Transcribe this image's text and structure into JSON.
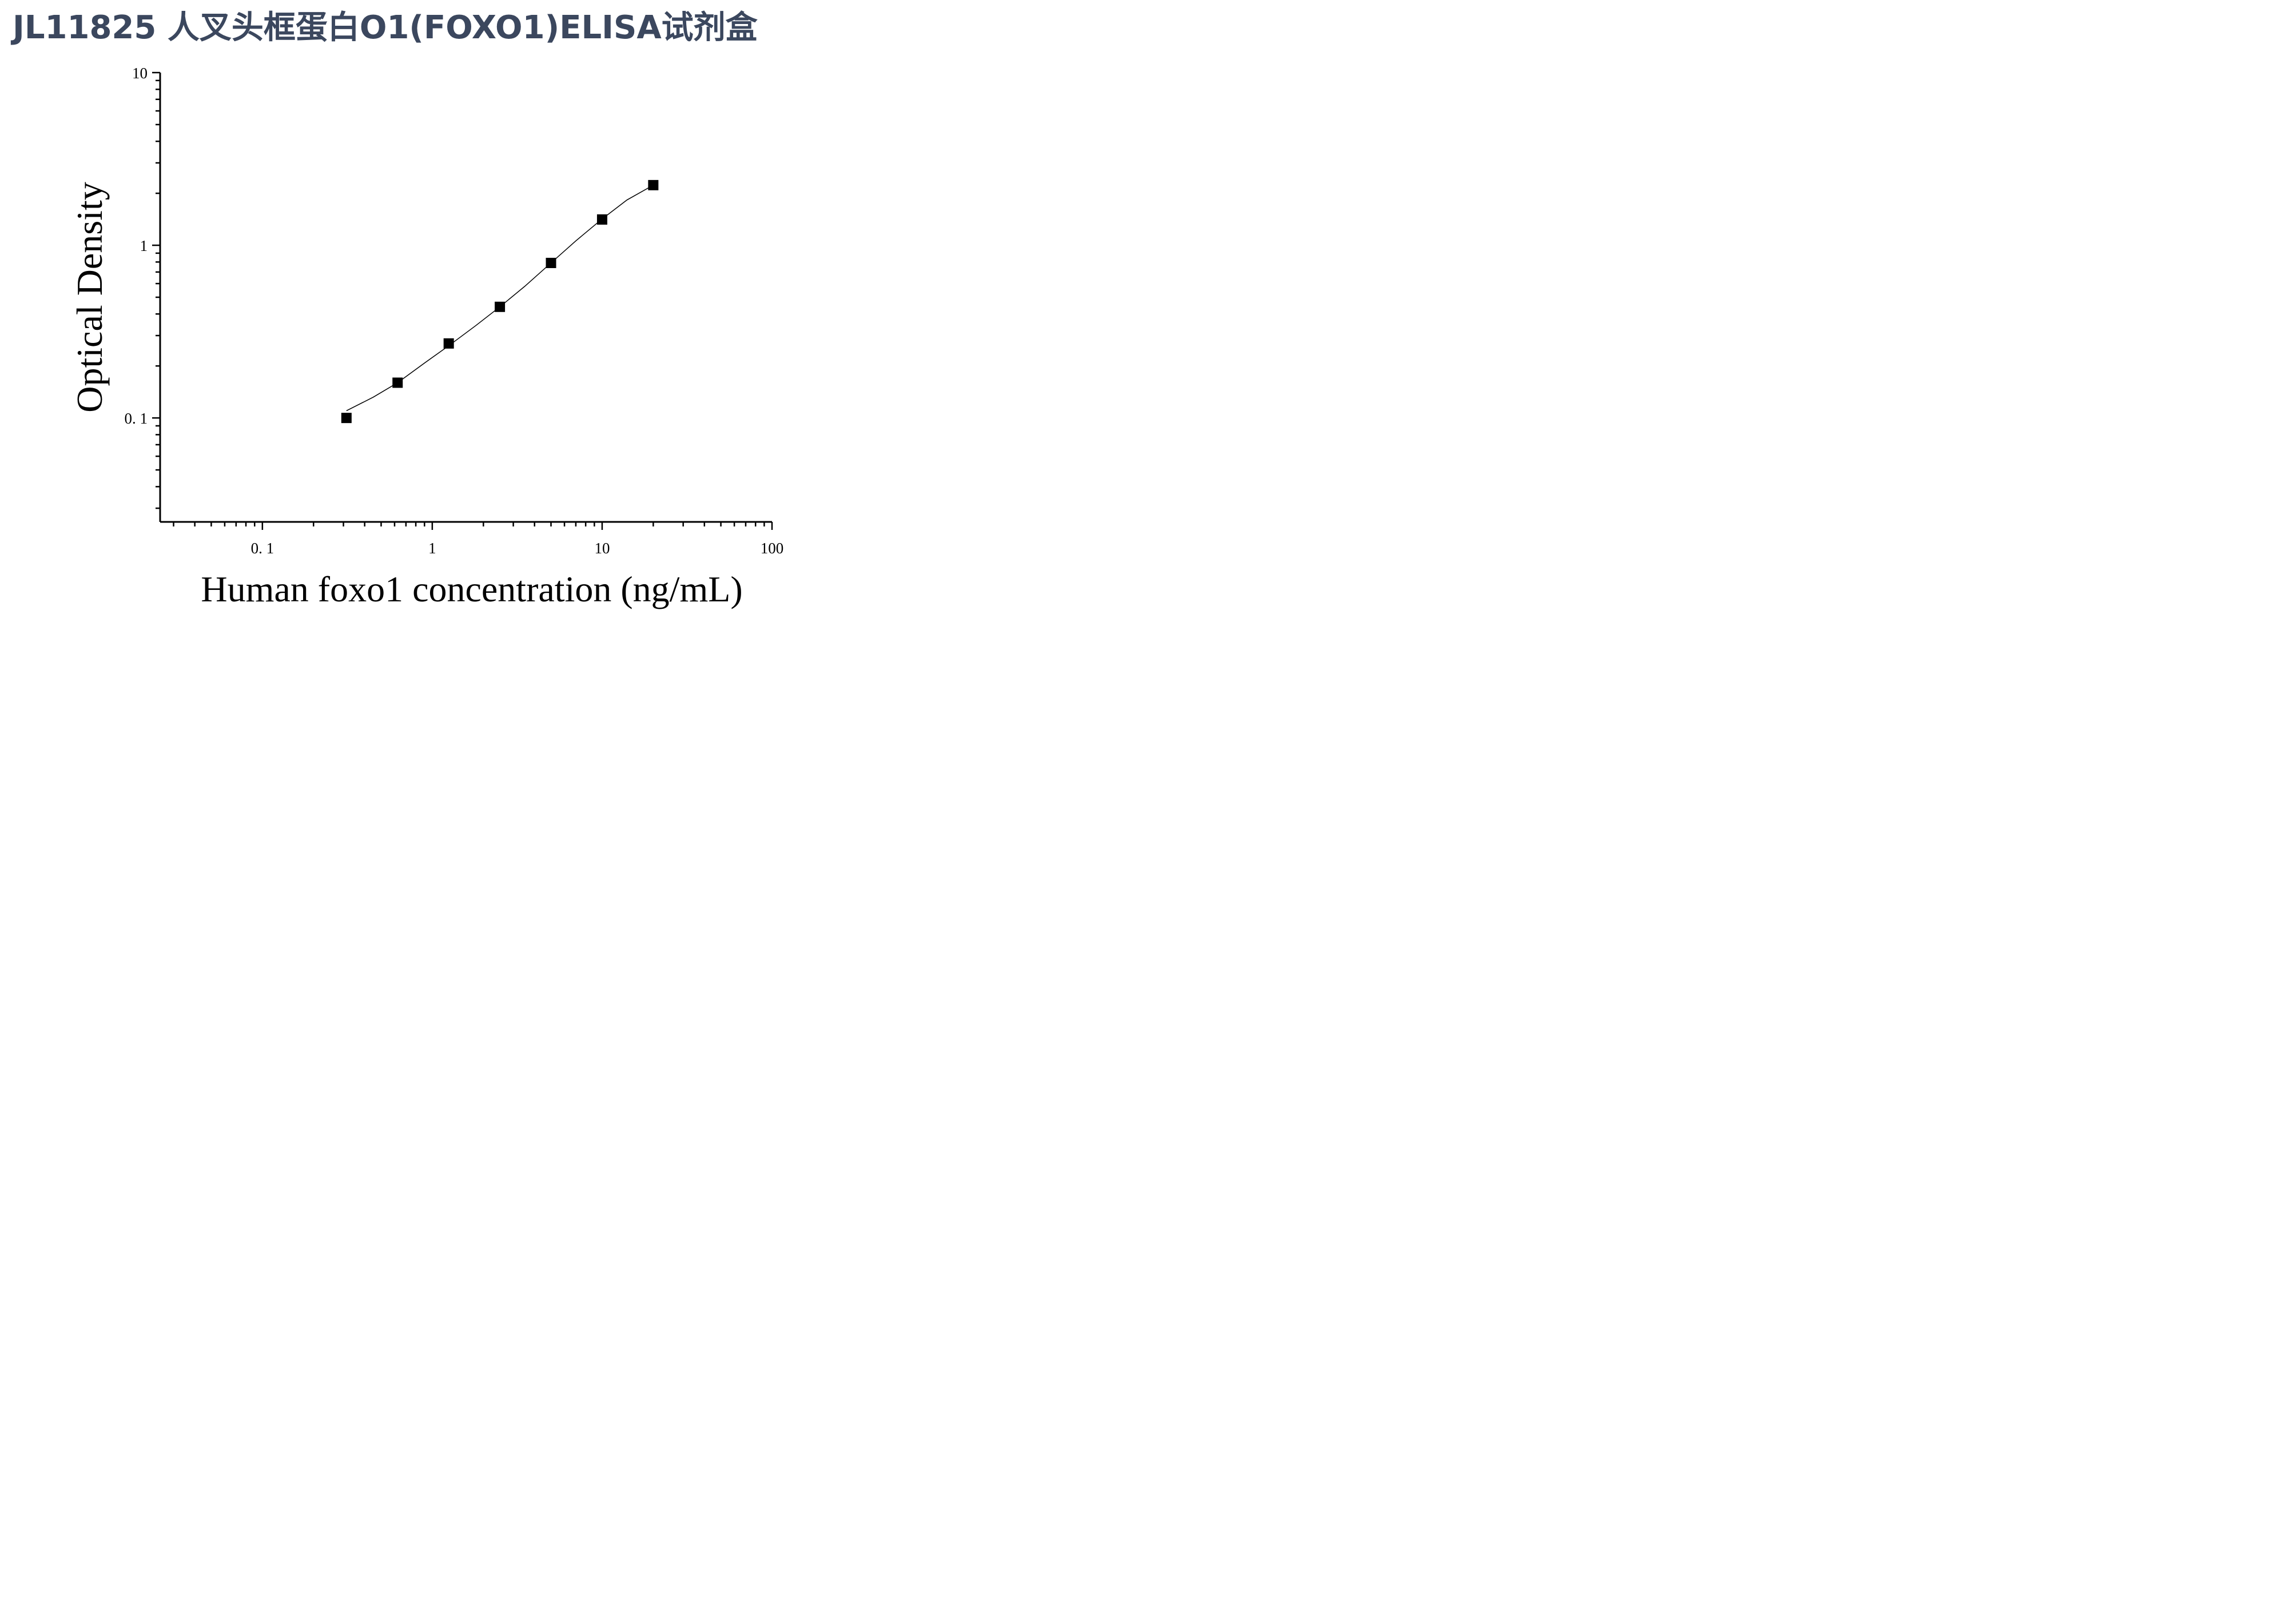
{
  "title": "JL11825 人叉头框蛋白O1(FOXO1)ELISA试剂盒",
  "chart_data": {
    "type": "scatter",
    "title": "JL11825 人叉头框蛋白O1(FOXO1)ELISA试剂盒",
    "xlabel": "Human foxo1 concentration (ng/mL)",
    "ylabel": "Optical Density",
    "x_scale": "log",
    "y_scale": "log",
    "xlim": [
      0.025,
      100
    ],
    "ylim": [
      0.025,
      10
    ],
    "x_tick_labels": [
      "0. 1",
      "1",
      "10",
      "100"
    ],
    "y_tick_labels": [
      "0. 1",
      "1",
      "10"
    ],
    "grid": false,
    "legend": "none",
    "marker_color": "#000000",
    "series": [
      {
        "x": [
          0.3125,
          0.625,
          1.25,
          2.5,
          5,
          10,
          20
        ],
        "y": [
          0.1,
          0.16,
          0.27,
          0.44,
          0.79,
          1.41,
          2.23
        ]
      }
    ],
    "fit_curve": {
      "x": [
        0.3125,
        0.45,
        0.625,
        0.9,
        1.25,
        1.8,
        2.5,
        3.5,
        5,
        7,
        10,
        14,
        20
      ],
      "y": [
        0.11,
        0.132,
        0.16,
        0.208,
        0.262,
        0.342,
        0.44,
        0.578,
        0.79,
        1.06,
        1.42,
        1.83,
        2.23
      ]
    }
  }
}
